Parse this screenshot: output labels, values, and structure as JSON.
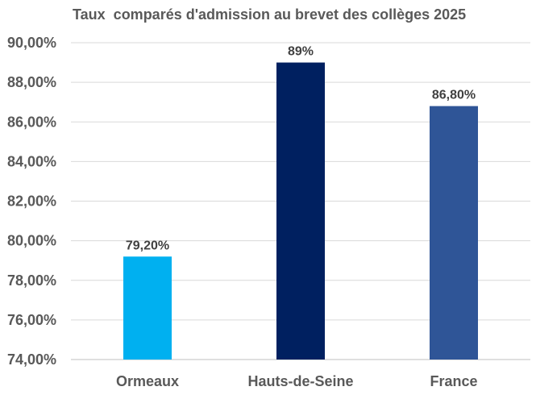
{
  "chart_data": {
    "type": "bar",
    "title": "Taux  comparés d'admission au brevet des collèges 2025",
    "categories": [
      "Ormeaux",
      "Hauts-de-Seine",
      "France"
    ],
    "values": [
      79.2,
      89.0,
      86.8
    ],
    "value_labels": [
      "79,20%",
      "89%",
      "86,80%"
    ],
    "bar_colors": [
      "#00B0F0",
      "#002060",
      "#2F5597"
    ],
    "ylim": [
      74,
      90
    ],
    "y_ticks": [
      74,
      76,
      78,
      80,
      82,
      84,
      86,
      88,
      90
    ],
    "y_tick_labels": [
      "74,00%",
      "76,00%",
      "78,00%",
      "80,00%",
      "82,00%",
      "84,00%",
      "86,00%",
      "88,00%",
      "90,00%"
    ],
    "grid": true,
    "xlabel": "",
    "ylabel": ""
  }
}
